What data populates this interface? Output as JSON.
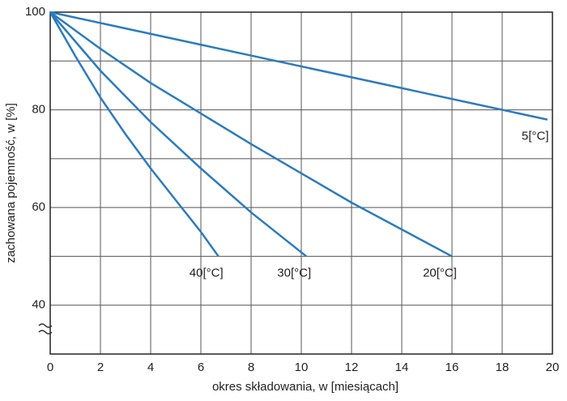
{
  "chart_data": {
    "type": "line",
    "xlabel": "okres składowania, w [miesiącach]",
    "ylabel": "zachowana pojemność, w [%]",
    "xlim": [
      0,
      20
    ],
    "ylim": [
      30,
      100
    ],
    "xticks": [
      0,
      2,
      4,
      6,
      8,
      10,
      12,
      14,
      16,
      18,
      20
    ],
    "yticks": [
      40,
      60,
      80,
      100
    ],
    "yminor": [
      30,
      50,
      70,
      90
    ],
    "grid": true,
    "color": "#2b7bbf",
    "series": [
      {
        "name": "5[°C]",
        "x": [
          0,
          19.8
        ],
        "values": [
          100,
          78
        ]
      },
      {
        "name": "20[°C]",
        "x": [
          0,
          2,
          4,
          8,
          12,
          16
        ],
        "values": [
          100,
          92.5,
          85.5,
          73,
          61,
          50
        ]
      },
      {
        "name": "30[°C]",
        "x": [
          0,
          2,
          4,
          6,
          8,
          10.2
        ],
        "values": [
          100,
          88,
          77.5,
          68,
          59,
          50
        ]
      },
      {
        "name": "40[°C]",
        "x": [
          0,
          1,
          2,
          3,
          4,
          5,
          6,
          6.7
        ],
        "values": [
          100,
          91,
          82.5,
          75,
          68,
          61.5,
          55,
          50
        ]
      }
    ]
  }
}
